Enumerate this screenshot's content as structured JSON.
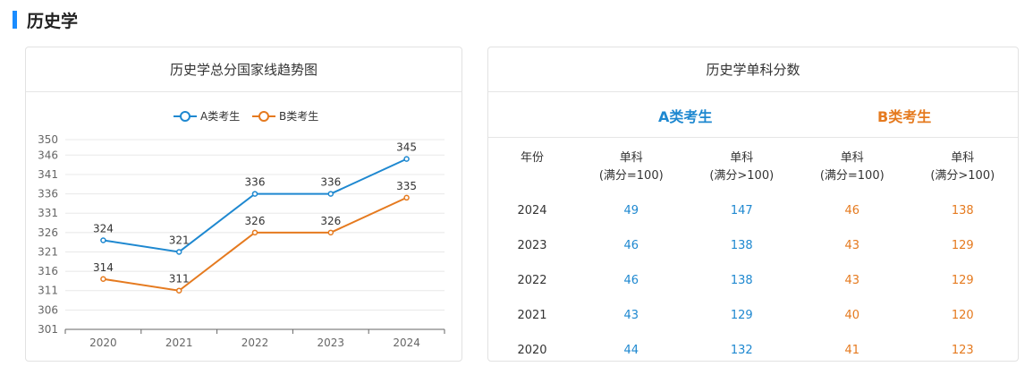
{
  "section": {
    "title": "历史学"
  },
  "left_card": {
    "title": "历史学总分国家线趋势图"
  },
  "chart_data": {
    "type": "line",
    "title": "历史学总分国家线趋势图",
    "x": [
      "2020",
      "2021",
      "2022",
      "2023",
      "2024"
    ],
    "y_ticks": [
      "301",
      "306",
      "311",
      "316",
      "321",
      "326",
      "331",
      "336",
      "341",
      "346",
      "350"
    ],
    "ylim": [
      301,
      350
    ],
    "grid": true,
    "legend_position": "top",
    "series": [
      {
        "name": "A类考生",
        "color": "#1e88d0",
        "values": [
          324,
          321,
          336,
          336,
          345
        ]
      },
      {
        "name": "B类考生",
        "color": "#e57a1f",
        "values": [
          314,
          311,
          326,
          326,
          335
        ]
      }
    ]
  },
  "right_card": {
    "title": "历史学单科分数",
    "group_a": "A类考生",
    "group_b": "B类考生",
    "headers": [
      "年份",
      "单科\n(满分=100)",
      "单科\n(满分>100)",
      "单科\n(满分=100)",
      "单科\n(满分>100)"
    ],
    "header_lines": [
      [
        "年份",
        ""
      ],
      [
        "单科",
        "(满分=100)"
      ],
      [
        "单科",
        "(满分>100)"
      ],
      [
        "单科",
        "(满分=100)"
      ],
      [
        "单科",
        "(满分>100)"
      ]
    ],
    "rows": [
      [
        "2024",
        "49",
        "147",
        "46",
        "138"
      ],
      [
        "2023",
        "46",
        "138",
        "43",
        "129"
      ],
      [
        "2022",
        "46",
        "138",
        "43",
        "129"
      ],
      [
        "2021",
        "43",
        "129",
        "40",
        "120"
      ],
      [
        "2020",
        "44",
        "132",
        "41",
        "123"
      ]
    ]
  }
}
